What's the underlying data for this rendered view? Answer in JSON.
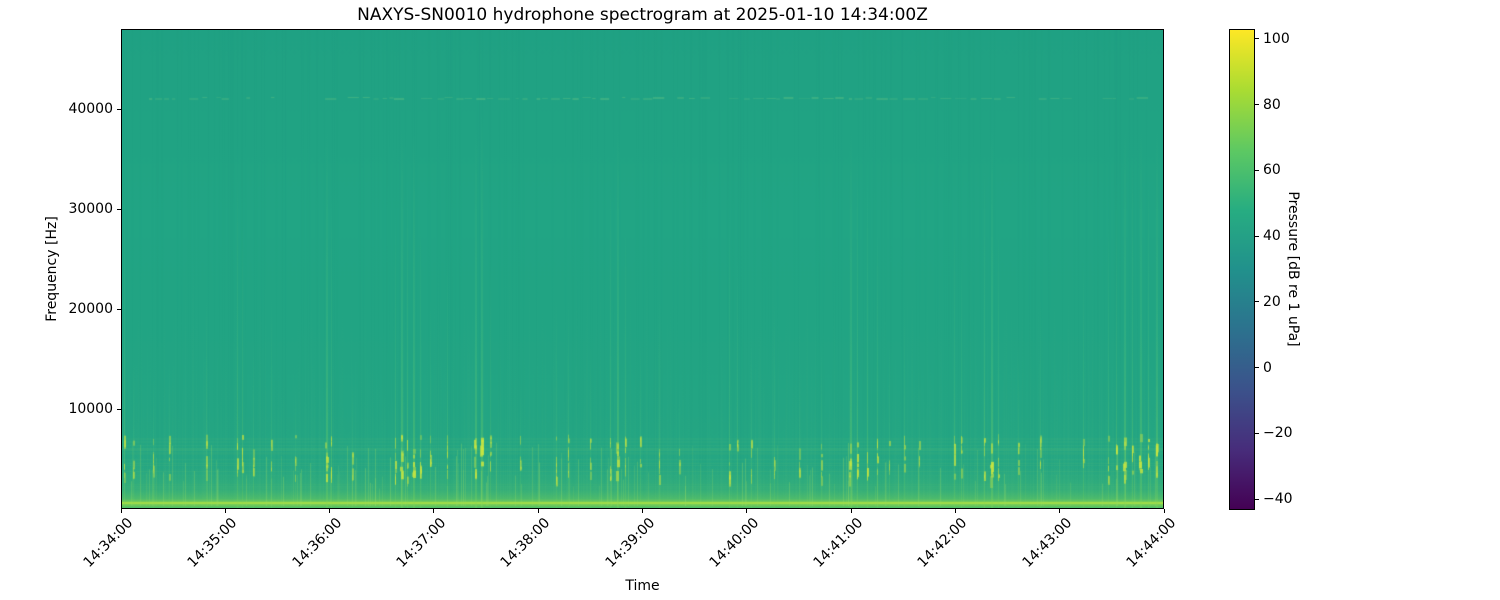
{
  "chart_data": {
    "type": "heatmap",
    "subtype": "spectrogram",
    "title": "NAXYS-SN0010 hydrophone spectrogram at 2025-01-10 14:34:00Z",
    "xlabel": "Time",
    "ylabel": "Frequency [Hz]",
    "x_tick_labels": [
      "14:34:00",
      "14:35:00",
      "14:36:00",
      "14:37:00",
      "14:38:00",
      "14:39:00",
      "14:40:00",
      "14:41:00",
      "14:42:00",
      "14:43:00",
      "14:44:00"
    ],
    "y_tick_values": [
      10000,
      20000,
      30000,
      40000
    ],
    "y_tick_labels": [
      "10000",
      "20000",
      "30000",
      "40000"
    ],
    "ylim": [
      0,
      48000
    ],
    "time_start": "14:34:00",
    "time_end": "14:44:00",
    "date": "2025-01-10",
    "grid": false,
    "colorbar": {
      "label": "Pressure [dB re 1 uPa]",
      "tick_values": [
        100,
        80,
        60,
        40,
        20,
        0,
        -20,
        -40
      ],
      "tick_labels": [
        "100",
        "80",
        "60",
        "40",
        "20",
        "0",
        "−20",
        "−40"
      ],
      "vmin": -43,
      "vmax": 103,
      "colormap": "viridis",
      "stops": [
        "#440154",
        "#472d7b",
        "#3b528b",
        "#2c728e",
        "#21918c",
        "#27ad81",
        "#5ec962",
        "#aadc32",
        "#fde725"
      ]
    },
    "colors": {
      "base": "#21a584"
    },
    "render_seed": 20250110,
    "features": {
      "description": "Uniform ambient level ~50 dB across band; elevated low-frequency band below ~2 kHz (~70-90 dB) along the bottom; repeated broadband transient clicks brightest between ~4-8 kHz; faint tonal band near 41 kHz.",
      "tonal_band_hz": 41200,
      "low_band_top_hz": 2000,
      "click_band_hz": [
        4000,
        8000
      ],
      "clicks": [
        [
          0.002,
          0.8
        ],
        [
          0.0105,
          0.35
        ],
        [
          0.0297,
          0.3
        ],
        [
          0.0451,
          0.35
        ],
        [
          0.0805,
          0.5
        ],
        [
          0.1103,
          0.85
        ],
        [
          0.1151,
          0.7
        ],
        [
          0.1256,
          0.4
        ],
        [
          0.1429,
          0.5
        ],
        [
          0.1668,
          0.3
        ],
        [
          0.1966,
          0.9
        ],
        [
          0.2014,
          0.75
        ],
        [
          0.2215,
          0.3
        ],
        [
          0.2627,
          0.7
        ],
        [
          0.2685,
          0.9
        ],
        [
          0.2742,
          0.8
        ],
        [
          0.28,
          0.9
        ],
        [
          0.2867,
          0.7
        ],
        [
          0.2963,
          0.5
        ],
        [
          0.3126,
          0.6
        ],
        [
          0.3394,
          0.9
        ],
        [
          0.3452,
          0.95
        ],
        [
          0.3538,
          0.6
        ],
        [
          0.3826,
          0.3
        ],
        [
          0.4171,
          0.5
        ],
        [
          0.4286,
          0.5
        ],
        [
          0.4497,
          0.4
        ],
        [
          0.4689,
          0.8
        ],
        [
          0.4756,
          0.9
        ],
        [
          0.4833,
          0.7
        ],
        [
          0.4977,
          0.4
        ],
        [
          0.5168,
          0.5
        ],
        [
          0.536,
          0.3
        ],
        [
          0.5839,
          0.7
        ],
        [
          0.5916,
          0.6
        ],
        [
          0.605,
          0.4
        ],
        [
          0.6271,
          0.5
        ],
        [
          0.651,
          0.3
        ],
        [
          0.6721,
          0.4
        ],
        [
          0.6999,
          0.9
        ],
        [
          0.7066,
          0.85
        ],
        [
          0.7162,
          0.8
        ],
        [
          0.7258,
          0.7
        ],
        [
          0.7373,
          0.4
        ],
        [
          0.7517,
          0.5
        ],
        [
          0.7661,
          0.3
        ],
        [
          0.7996,
          0.7
        ],
        [
          0.8063,
          0.6
        ],
        [
          0.8284,
          0.85
        ],
        [
          0.8351,
          0.9
        ],
        [
          0.8427,
          0.7
        ],
        [
          0.8619,
          0.4
        ],
        [
          0.883,
          0.5
        ],
        [
          0.9242,
          0.6
        ],
        [
          0.9482,
          0.7
        ],
        [
          0.9559,
          0.8
        ],
        [
          0.9636,
          0.9
        ],
        [
          0.9712,
          0.85
        ],
        [
          0.9789,
          0.9
        ],
        [
          0.9866,
          0.8
        ],
        [
          0.9942,
          0.9
        ]
      ]
    }
  }
}
